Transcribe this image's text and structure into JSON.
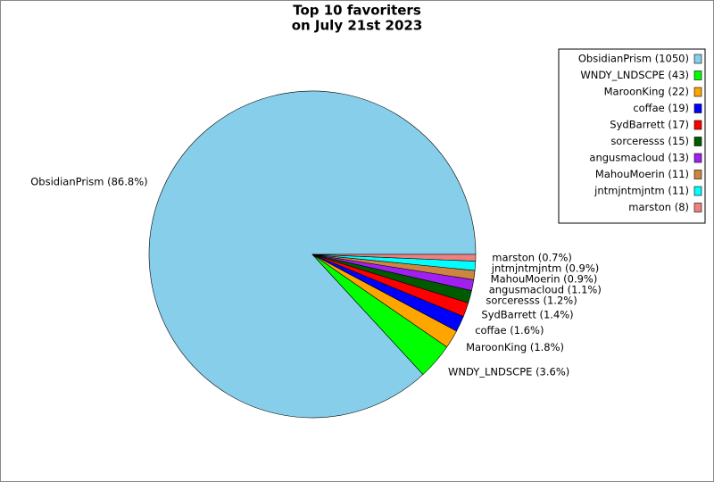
{
  "chart_data": {
    "type": "pie",
    "title": [
      "Top 10 favoriters",
      "on July 21st 2023"
    ],
    "values": [
      1050,
      43,
      22,
      19,
      17,
      15,
      13,
      11,
      11,
      8
    ],
    "legend_labels": [
      "ObsidianPrism (1050)",
      "WNDY_LNDSCPE (43)",
      "MaroonKing (22)",
      "coffae (19)",
      "SydBarrett (17)",
      "sorceresss (15)",
      "angusmacloud (13)",
      "MahouMoerin (11)",
      "jntmjntmjntm (11)",
      "marston (8)"
    ],
    "slice_labels": [
      "ObsidianPrism (86.8%)",
      "WNDY_LNDSCPE (3.6%)",
      "MaroonKing (1.8%)",
      "coffae (1.6%)",
      "SydBarrett (1.4%)",
      "sorceresss (1.2%)",
      "angusmacloud (1.1%)",
      "MahouMoerin (0.9%)",
      "jntmjntmjntm (0.9%)",
      "marston (0.7%)"
    ],
    "colors": [
      "#87ceeb",
      "#00ff00",
      "#ffa500",
      "#0000ff",
      "#ff0000",
      "#005a00",
      "#a020f0",
      "#cd853f",
      "#00ffff",
      "#f08080"
    ],
    "legend": "upper right"
  }
}
